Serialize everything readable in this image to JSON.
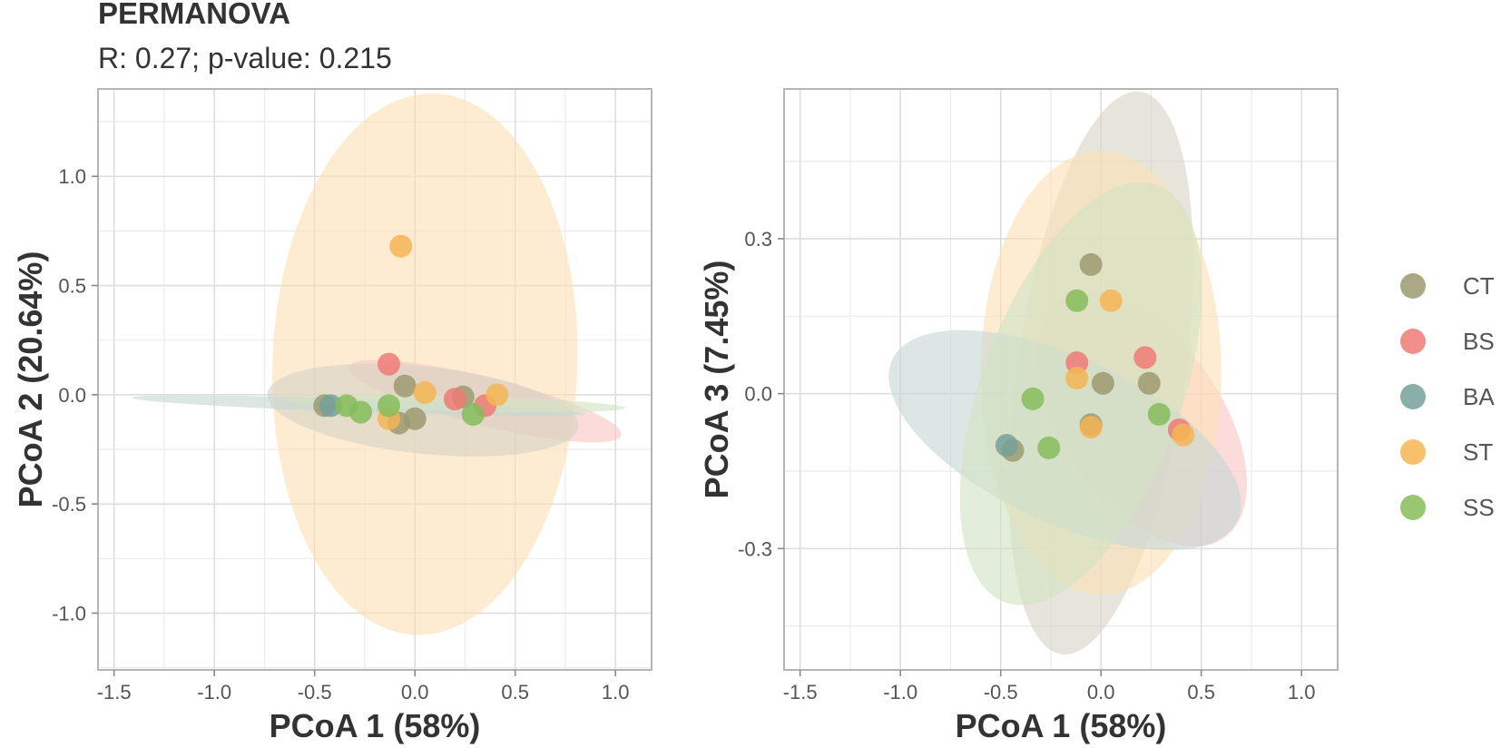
{
  "chart_data": [
    {
      "type": "scatter",
      "title": "PERMANOVA",
      "subtitle": "R: 0.27; p-value: 0.215",
      "xlabel": "PCoA 1 (58%)",
      "ylabel": "PCoA 2 (20.64%)",
      "xlim": [
        -1.58,
        1.18
      ],
      "ylim": [
        -1.26,
        1.4
      ],
      "xticks": [
        -1.5,
        -1.0,
        -0.5,
        0.0,
        0.5,
        1.0
      ],
      "yticks": [
        -1.0,
        -0.5,
        0.0,
        0.5,
        1.0
      ],
      "xtick_labels": [
        "-1.5",
        "-1.0",
        "-0.5",
        "0.0",
        "0.5",
        "1.0"
      ],
      "ytick_labels": [
        "-1.0",
        "-0.5",
        "0.0",
        "0.5",
        "1.0"
      ],
      "series": [
        {
          "name": "CT",
          "points": [
            [
              -0.05,
              0.04
            ],
            [
              -0.08,
              -0.13
            ],
            [
              0.0,
              -0.11
            ],
            [
              0.24,
              -0.01
            ],
            [
              -0.45,
              -0.05
            ]
          ]
        },
        {
          "name": "BS",
          "points": [
            [
              -0.13,
              0.14
            ],
            [
              0.2,
              -0.02
            ],
            [
              0.35,
              -0.05
            ]
          ]
        },
        {
          "name": "BA",
          "points": [
            [
              -0.42,
              -0.05
            ]
          ]
        },
        {
          "name": "ST",
          "points": [
            [
              -0.07,
              0.68
            ],
            [
              0.05,
              0.01
            ],
            [
              0.41,
              0.0
            ],
            [
              -0.13,
              -0.11
            ]
          ]
        },
        {
          "name": "SS",
          "points": [
            [
              -0.34,
              -0.05
            ],
            [
              -0.27,
              -0.08
            ],
            [
              -0.13,
              -0.05
            ],
            [
              0.29,
              -0.09
            ]
          ]
        }
      ],
      "ellipses": [
        {
          "group": "ST",
          "center": [
            0.05,
            0.14
          ],
          "rx": 0.76,
          "ry": 1.24,
          "angle": -2
        },
        {
          "group": "BS",
          "center": [
            0.35,
            -0.03
          ],
          "rx": 0.7,
          "ry": 0.11,
          "angle": -14
        },
        {
          "group": "CT",
          "center": [
            0.04,
            -0.07
          ],
          "rx": 0.78,
          "ry": 0.2,
          "angle": -6
        },
        {
          "group": "BA",
          "center": [
            -0.28,
            -0.05
          ],
          "rx": 1.13,
          "ry": 0.03,
          "angle": -2
        },
        {
          "group": "SS",
          "center": [
            0.2,
            -0.04
          ],
          "rx": 0.85,
          "ry": 0.035,
          "angle": -1.5
        }
      ]
    },
    {
      "type": "scatter",
      "title": "",
      "xlabel": "PCoA 1 (58%)",
      "ylabel": "PCoA 3 (7.45%)",
      "xlim": [
        -1.58,
        1.18
      ],
      "ylim": [
        -0.535,
        0.59
      ],
      "xticks": [
        -1.5,
        -1.0,
        -0.5,
        0.0,
        0.5,
        1.0
      ],
      "yticks": [
        -0.3,
        0.0,
        0.3
      ],
      "xtick_labels": [
        "-1.5",
        "-1.0",
        "-0.5",
        "0.0",
        "0.5",
        "1.0"
      ],
      "ytick_labels": [
        "-0.3",
        "0.0",
        "0.3"
      ],
      "series": [
        {
          "name": "CT",
          "points": [
            [
              -0.05,
              0.25
            ],
            [
              0.01,
              0.02
            ],
            [
              0.24,
              0.02
            ],
            [
              -0.05,
              -0.06
            ],
            [
              -0.44,
              -0.11
            ]
          ]
        },
        {
          "name": "BS",
          "points": [
            [
              -0.12,
              0.06
            ],
            [
              0.22,
              0.07
            ],
            [
              0.39,
              -0.07
            ]
          ]
        },
        {
          "name": "BA",
          "points": [
            [
              -0.47,
              -0.1
            ]
          ]
        },
        {
          "name": "ST",
          "points": [
            [
              -0.12,
              0.03
            ],
            [
              0.05,
              0.18
            ],
            [
              0.41,
              -0.08
            ],
            [
              -0.05,
              -0.065
            ]
          ]
        },
        {
          "name": "SS",
          "points": [
            [
              -0.12,
              0.18
            ],
            [
              -0.34,
              -0.01
            ],
            [
              -0.26,
              -0.105
            ],
            [
              0.29,
              -0.04
            ]
          ]
        }
      ],
      "ellipses": [
        {
          "group": "CT",
          "center": [
            0.0,
            0.04
          ],
          "rx": 0.42,
          "ry": 0.55,
          "angle": -8
        },
        {
          "group": "BS",
          "center": [
            0.2,
            -0.05
          ],
          "rx": 0.4,
          "ry": 0.28,
          "angle": 35
        },
        {
          "group": "ST",
          "center": [
            0.0,
            0.04
          ],
          "rx": 0.6,
          "ry": 0.43,
          "angle": 0
        },
        {
          "group": "BA",
          "center": [
            -0.18,
            -0.09
          ],
          "rx": 0.95,
          "ry": 0.16,
          "angle": -25
        },
        {
          "group": "SS",
          "center": [
            -0.1,
            0.0
          ],
          "rx": 0.5,
          "ry": 0.43,
          "angle": -20
        }
      ]
    }
  ],
  "legend": {
    "position": "right",
    "entries": [
      {
        "name": "CT",
        "color": "#9C9A70"
      },
      {
        "name": "BS",
        "color": "#EF7B76"
      },
      {
        "name": "BA",
        "color": "#76A09A"
      },
      {
        "name": "ST",
        "color": "#F5B554"
      },
      {
        "name": "SS",
        "color": "#86BC5B"
      }
    ]
  },
  "ellipse_colors": {
    "CT": "#D6D4C5",
    "BS": "#F8C7C3",
    "BA": "#C6D7D5",
    "ST": "#FBE1B6",
    "SS": "#D2E4C3"
  }
}
